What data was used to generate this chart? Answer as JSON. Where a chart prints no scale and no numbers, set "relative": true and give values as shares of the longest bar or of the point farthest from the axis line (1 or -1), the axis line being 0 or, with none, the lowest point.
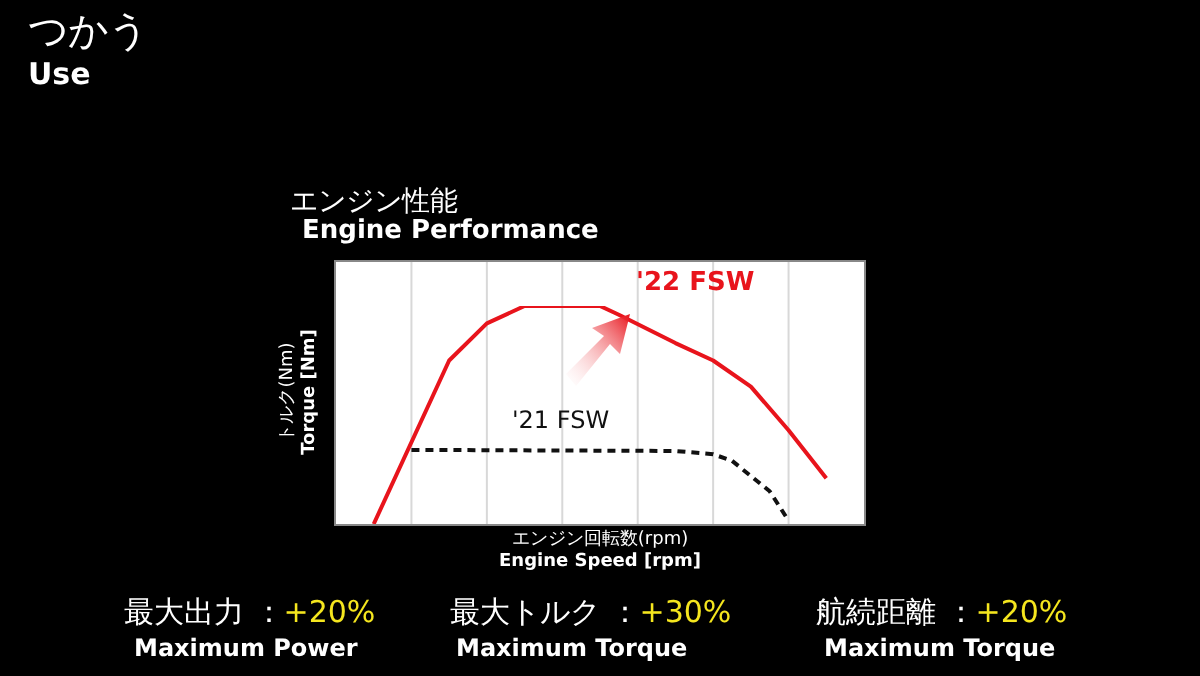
{
  "chart_data": {
    "type": "line",
    "title": "つかう",
    "subtitle": "Use",
    "xlabel": "エンジン回転数(rpm)\nEngine Speed [rpm]",
    "ylabel": "トルク(Nm)\nTorque [Nm]",
    "relative": true,
    "categories": [
      null,
      null,
      null,
      null,
      null,
      null,
      null,
      null,
      null,
      null,
      null,
      null,
      null,
      null,
      null,
      null,
      null,
      null,
      null,
      null,
      null,
      null,
      null,
      null,
      null,
      null,
      null,
      null,
      null
    ],
    "tick_labels": false,
    "grid": "x",
    "marker": "none",
    "series": [
      {
        "name": "'22 FSW",
        "color": "#e8141c",
        "line_style": "solid",
        "values": [
          null,
          null,
          0,
          null,
          null,
          null,
          0.75,
          null,
          0.92,
          null,
          1,
          null,
          null,
          null,
          1,
          0.96,
          null,
          null,
          0.83,
          null,
          0.75,
          null,
          0.63,
          null,
          0.43,
          null,
          0.21,
          null,
          null
        ]
      },
      {
        "name": "'21 FSW",
        "color": "#111111",
        "line_style": "dashed",
        "values": [
          null,
          null,
          null,
          null,
          0.34,
          null,
          null,
          null,
          null,
          null,
          null,
          null,
          null,
          null,
          null,
          null,
          null,
          null,
          0.335,
          null,
          0.32,
          0.29,
          0.22,
          0.15,
          0.015,
          null,
          null,
          null,
          null
        ]
      }
    ],
    "annotations": [
      "エンジン性能",
      "Engine Performance",
      "最大出力 ：",
      "+20%",
      "Maximum Power",
      "最大トルク ：",
      "+30%",
      "Maximum Torque",
      "航続距離 ：",
      "+20%",
      "Maximum Torque"
    ]
  }
}
